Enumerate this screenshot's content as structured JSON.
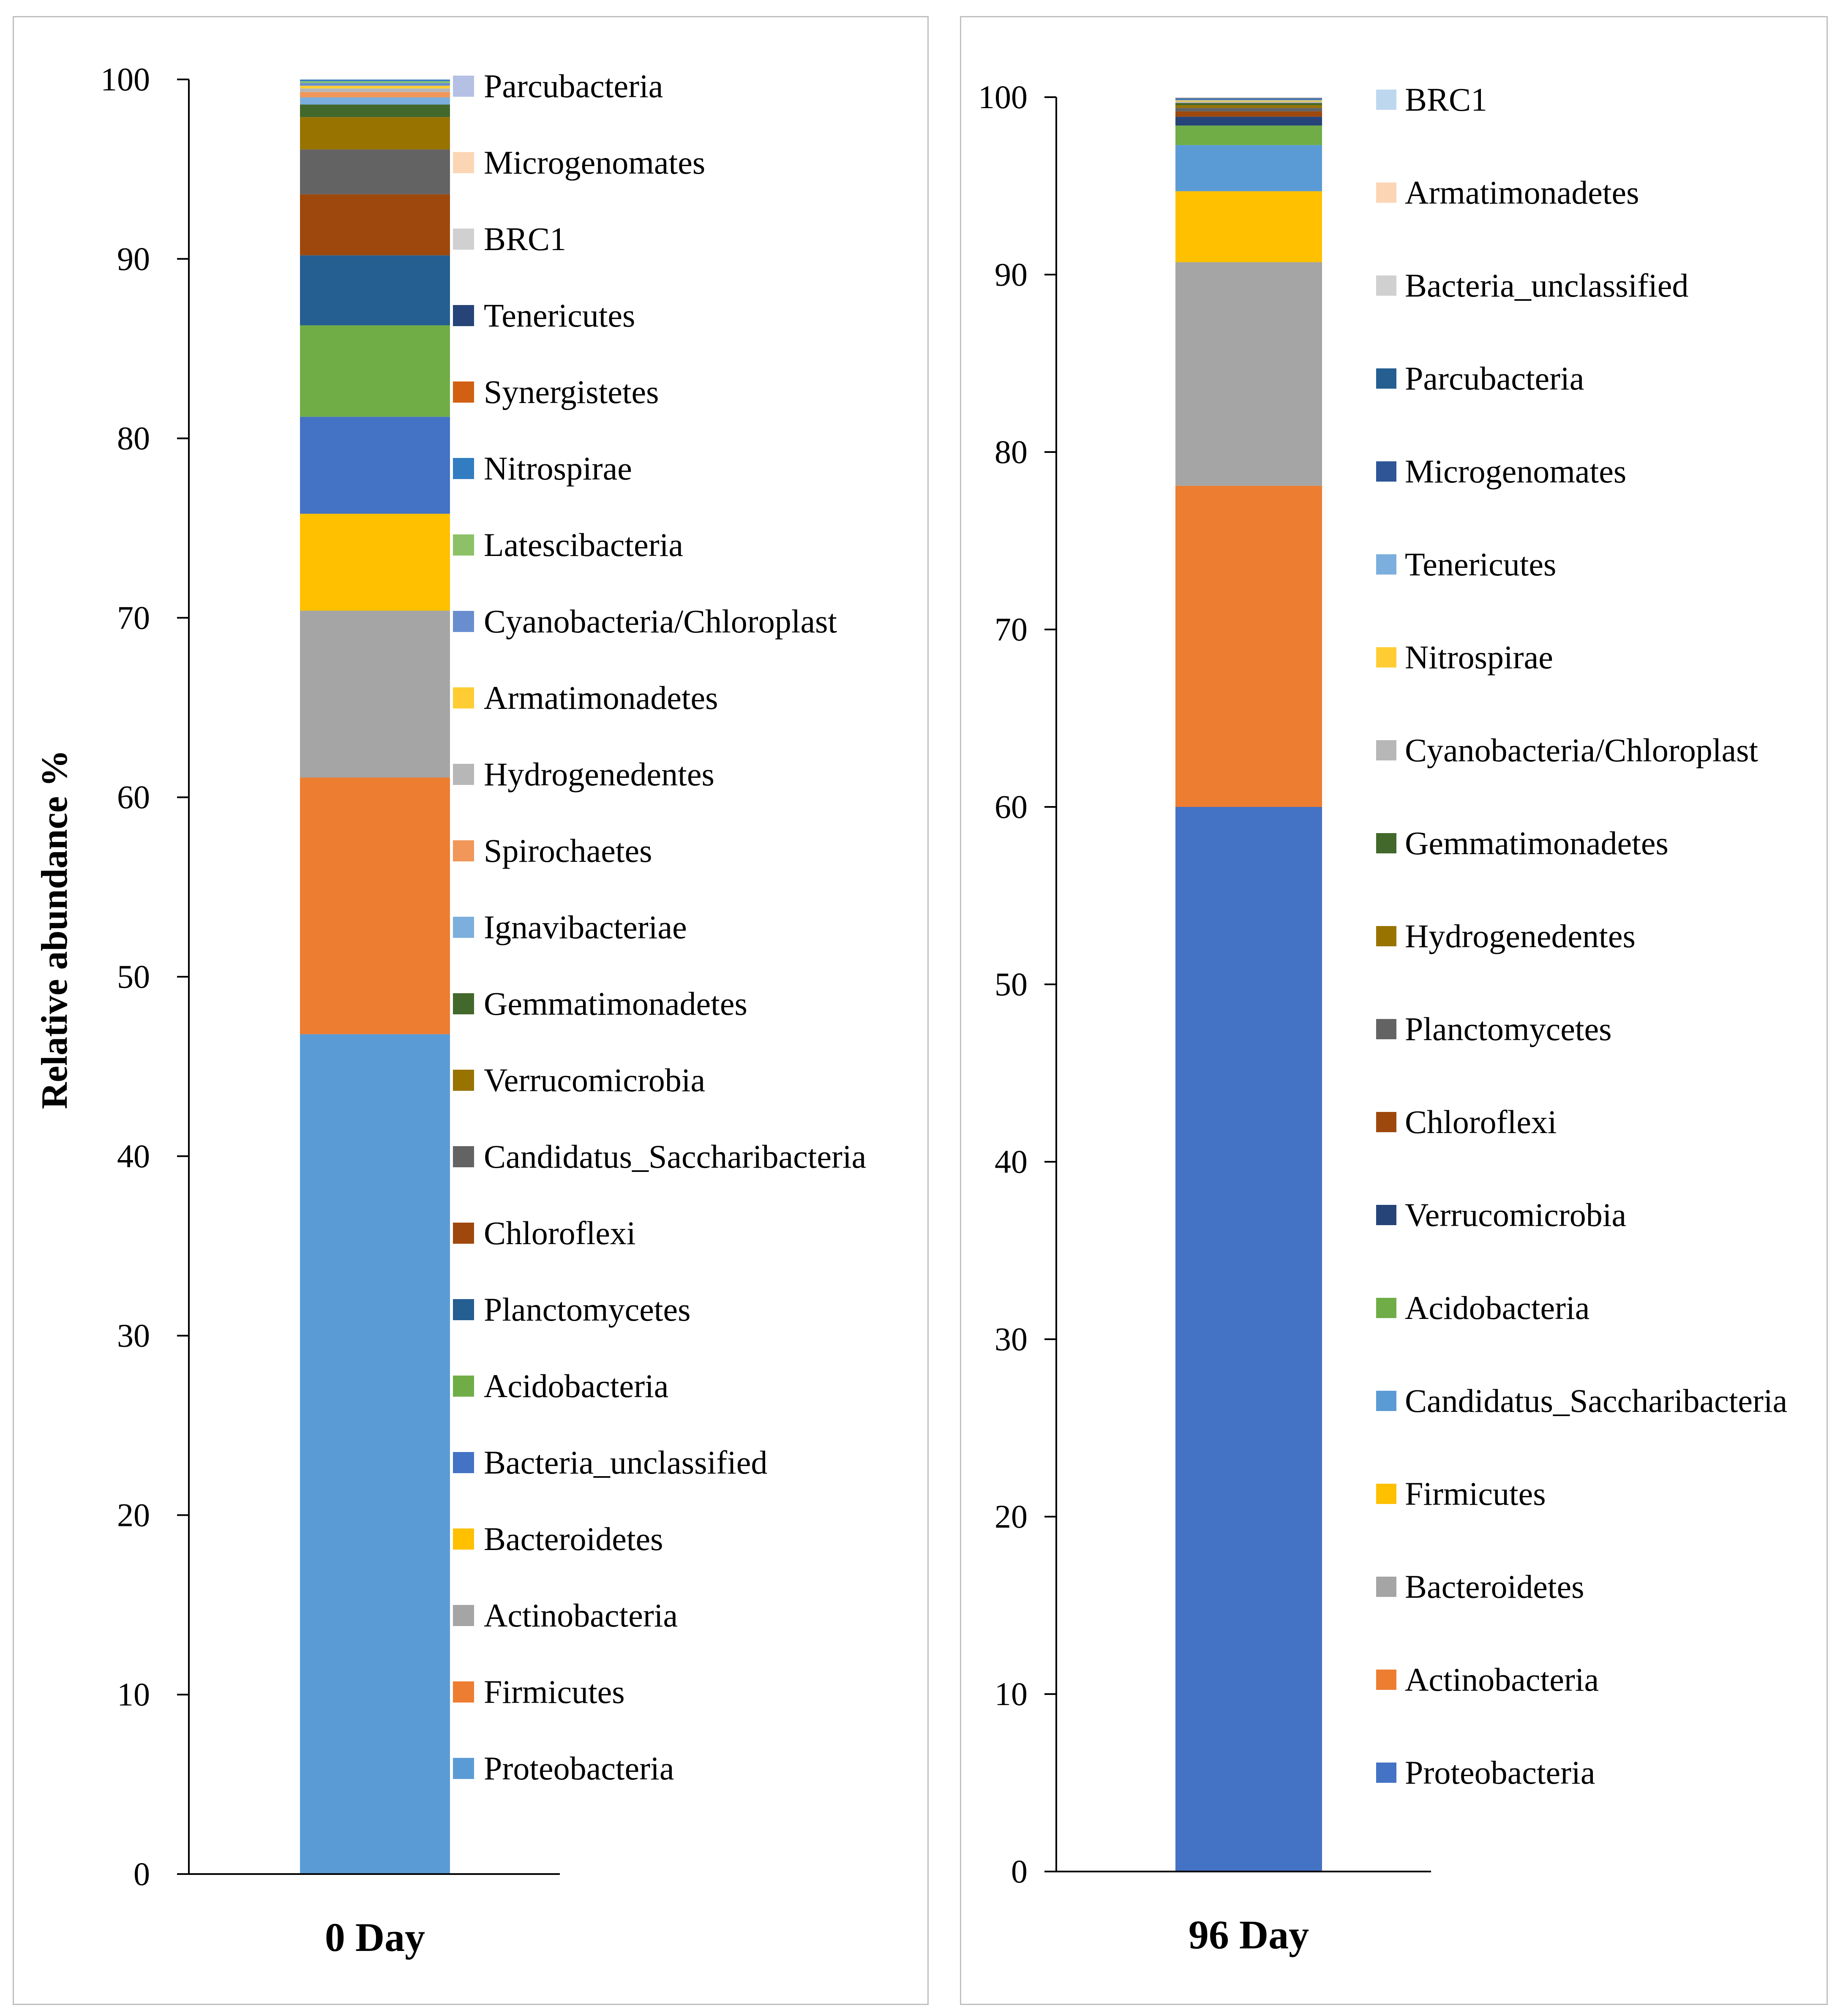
{
  "chart_data": [
    {
      "type": "bar",
      "stacked": true,
      "categories": [
        "0 Day"
      ],
      "ylabel": "Relative abundance %",
      "ylim": [
        0,
        100
      ],
      "yticks": [
        0,
        10,
        20,
        30,
        40,
        50,
        60,
        70,
        80,
        90,
        100
      ],
      "grid": false,
      "legend_position": "right",
      "series": [
        {
          "name": "Proteobacteria",
          "values": [
            46.8
          ],
          "color": "#5b9bd5"
        },
        {
          "name": "Firmicutes",
          "values": [
            14.3
          ],
          "color": "#ed7d31"
        },
        {
          "name": "Actinobacteria",
          "values": [
            9.3
          ],
          "color": "#a5a5a5"
        },
        {
          "name": "Bacteroidetes",
          "values": [
            5.4
          ],
          "color": "#ffc000"
        },
        {
          "name": "Bacteria_unclassified",
          "values": [
            5.4
          ],
          "color": "#4472c4"
        },
        {
          "name": "Acidobacteria",
          "values": [
            5.1
          ],
          "color": "#70ad47"
        },
        {
          "name": "Planctomycetes",
          "values": [
            3.9
          ],
          "color": "#255e91"
        },
        {
          "name": "Chloroflexi",
          "values": [
            3.4
          ],
          "color": "#9e480e"
        },
        {
          "name": "Candidatus_Saccharibacteria",
          "values": [
            2.5
          ],
          "color": "#636363"
        },
        {
          "name": "Verrucomicrobia",
          "values": [
            1.8
          ],
          "color": "#997300"
        },
        {
          "name": "Gemmatimonadetes",
          "values": [
            0.7
          ],
          "color": "#43682b"
        },
        {
          "name": "Ignavibacteriae",
          "values": [
            0.4
          ],
          "color": "#7cafdd"
        },
        {
          "name": "Spirochaetes",
          "values": [
            0.3
          ],
          "color": "#f1975a"
        },
        {
          "name": "Hydrogenedentes",
          "values": [
            0.2
          ],
          "color": "#b7b7b7"
        },
        {
          "name": "Armatimonadetes",
          "values": [
            0.15
          ],
          "color": "#ffcd33"
        },
        {
          "name": "Cyanobacteria/Chloroplast",
          "values": [
            0.15
          ],
          "color": "#698ed0"
        },
        {
          "name": "Latescibacteria",
          "values": [
            0.1
          ],
          "color": "#8cc168"
        },
        {
          "name": "Nitrospirae",
          "values": [
            0.1
          ],
          "color": "#327dc2"
        },
        {
          "name": "Synergistetes",
          "values": [
            0.05
          ],
          "color": "#d26012"
        },
        {
          "name": "Tenericutes",
          "values": [
            0.05
          ],
          "color": "#264478"
        },
        {
          "name": "BRC1",
          "values": [
            0.04
          ],
          "color": "#d0d0d0"
        },
        {
          "name": "Microgenomates",
          "values": [
            0.03
          ],
          "color": "#fcd5b5"
        },
        {
          "name": "Parcubacteria",
          "values": [
            0.03
          ],
          "color": "#b4c0e4"
        }
      ]
    },
    {
      "type": "bar",
      "stacked": true,
      "categories": [
        "96 Day"
      ],
      "ylim": [
        0,
        100
      ],
      "yticks": [
        0,
        10,
        20,
        30,
        40,
        50,
        60,
        70,
        80,
        90,
        100
      ],
      "grid": false,
      "legend_position": "right",
      "series": [
        {
          "name": "Proteobacteria",
          "values": [
            60.0
          ],
          "color": "#4472c4"
        },
        {
          "name": "Actinobacteria",
          "values": [
            18.1
          ],
          "color": "#ed7d31"
        },
        {
          "name": "Bacteroidetes",
          "values": [
            12.6
          ],
          "color": "#a5a5a5"
        },
        {
          "name": "Firmicutes",
          "values": [
            4.0
          ],
          "color": "#ffc000"
        },
        {
          "name": "Candidatus_Saccharibacteria",
          "values": [
            2.6
          ],
          "color": "#5b9bd5"
        },
        {
          "name": "Acidobacteria",
          "values": [
            1.1
          ],
          "color": "#70ad47"
        },
        {
          "name": "Verrucomicrobia",
          "values": [
            0.5
          ],
          "color": "#264478"
        },
        {
          "name": "Chloroflexi",
          "values": [
            0.3
          ],
          "color": "#9e480e"
        },
        {
          "name": "Planctomycetes",
          "values": [
            0.2
          ],
          "color": "#636363"
        },
        {
          "name": "Hydrogenedentes",
          "values": [
            0.15
          ],
          "color": "#997300"
        },
        {
          "name": "Gemmatimonadetes",
          "values": [
            0.12
          ],
          "color": "#43682b"
        },
        {
          "name": "Cyanobacteria/Chloroplast",
          "values": [
            0.08
          ],
          "color": "#b7b7b7"
        },
        {
          "name": "Nitrospirae",
          "values": [
            0.06
          ],
          "color": "#ffcd33"
        },
        {
          "name": "Tenericutes",
          "values": [
            0.05
          ],
          "color": "#7cafdd"
        },
        {
          "name": "Microgenomates",
          "values": [
            0.04
          ],
          "color": "#2f5597"
        },
        {
          "name": "Parcubacteria",
          "values": [
            0.04
          ],
          "color": "#255e91"
        },
        {
          "name": "Bacteria_unclassified",
          "values": [
            0.03
          ],
          "color": "#d0d0d0"
        },
        {
          "name": "Armatimonadetes",
          "values": [
            0.03
          ],
          "color": "#fcd5b5"
        },
        {
          "name": "BRC1",
          "values": [
            0.02
          ],
          "color": "#bdd7ee"
        }
      ]
    }
  ]
}
